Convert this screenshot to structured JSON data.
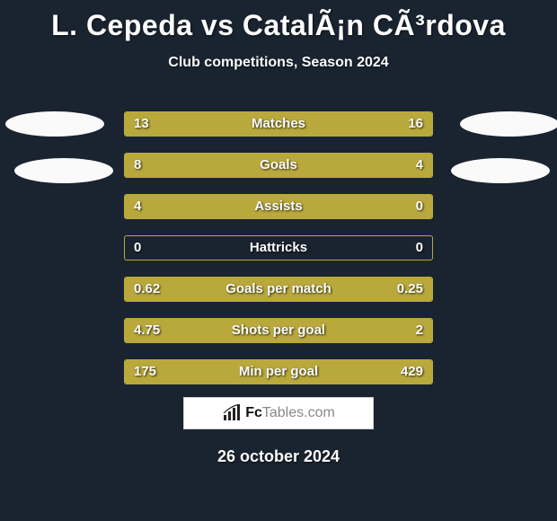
{
  "title": "L. Cepeda vs CatalÃ¡n CÃ³rdova",
  "subtitle": "Club competitions, Season 2024",
  "date": "26 october 2024",
  "logo": {
    "brand": "Fc",
    "rest": "Tables",
    "suffix": ".com"
  },
  "colors": {
    "bg": "#1a2430",
    "bar": "#b9a93d",
    "text": "#fcfcfc",
    "logo_bg": "#ffffff"
  },
  "rows": [
    {
      "label": "Matches",
      "left_val": "13",
      "right_val": "16",
      "left_pct": 45,
      "right_pct": 55
    },
    {
      "label": "Goals",
      "left_val": "8",
      "right_val": "4",
      "left_pct": 67,
      "right_pct": 33
    },
    {
      "label": "Assists",
      "left_val": "4",
      "right_val": "0",
      "left_pct": 100,
      "right_pct": 0
    },
    {
      "label": "Hattricks",
      "left_val": "0",
      "right_val": "0",
      "left_pct": 0,
      "right_pct": 0
    },
    {
      "label": "Goals per match",
      "left_val": "0.62",
      "right_val": "0.25",
      "left_pct": 71,
      "right_pct": 29
    },
    {
      "label": "Shots per goal",
      "left_val": "4.75",
      "right_val": "2",
      "left_pct": 70,
      "right_pct": 30
    },
    {
      "label": "Min per goal",
      "left_val": "175",
      "right_val": "429",
      "left_pct": 29,
      "right_pct": 71
    }
  ]
}
